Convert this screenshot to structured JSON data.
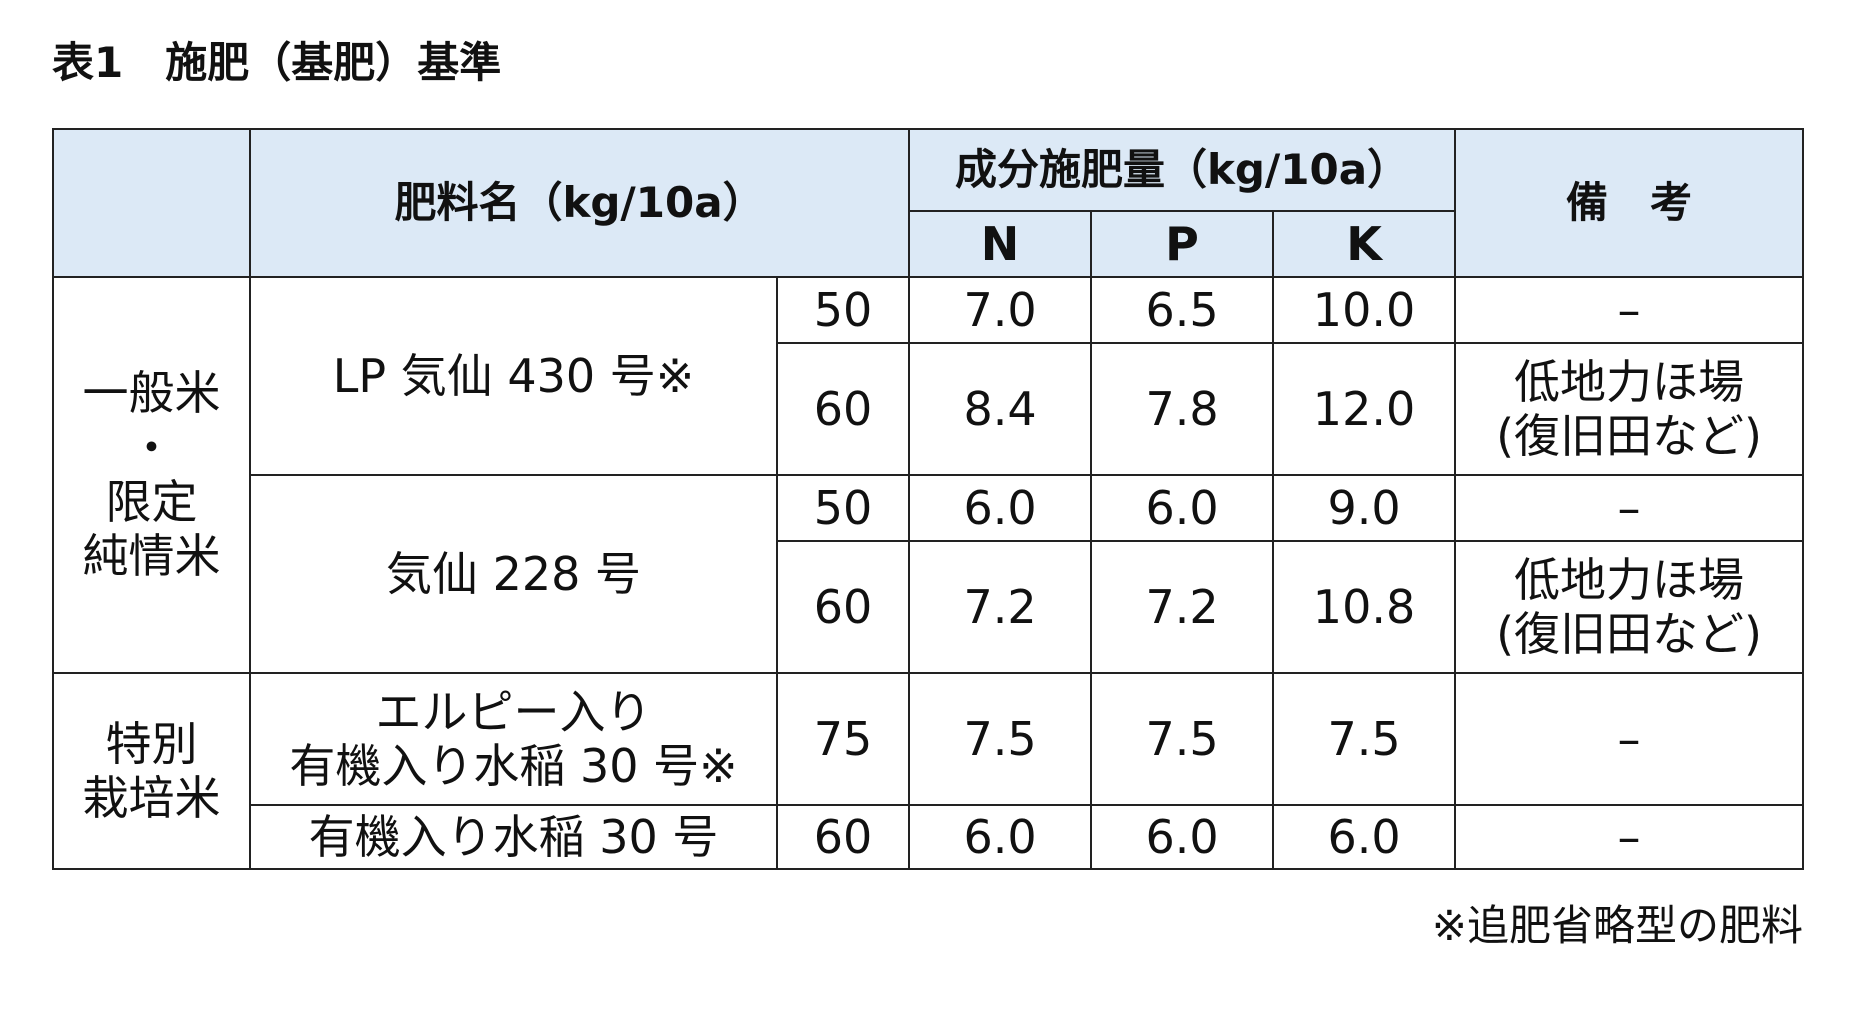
{
  "title": "表1　施肥（基肥）基準",
  "header": {
    "fertilizer_name": "肥料名（kg/10a）",
    "component": "成分施肥量（kg/10a）",
    "n": "N",
    "p": "P",
    "k": "K",
    "remarks": "備　考"
  },
  "groups": {
    "general": [
      "一般米",
      "・",
      "限定",
      "純情米"
    ],
    "special": [
      "特別",
      "栽培米"
    ]
  },
  "fertilizers": {
    "lp": "LP 気仙 430 号※",
    "kesen": "気仙 228 号",
    "elpi": [
      "エルピー入り",
      "有機入り水稲 30 号※"
    ],
    "organic": "有機入り水稲 30 号"
  },
  "rows": [
    {
      "amount": "50",
      "n": "7.0",
      "p": "6.5",
      "k": "10.0",
      "remark": [
        "–"
      ]
    },
    {
      "amount": "60",
      "n": "8.4",
      "p": "7.8",
      "k": "12.0",
      "remark": [
        "低地力ほ場",
        "(復旧田など)"
      ]
    },
    {
      "amount": "50",
      "n": "6.0",
      "p": "6.0",
      "k": "9.0",
      "remark": [
        "–"
      ]
    },
    {
      "amount": "60",
      "n": "7.2",
      "p": "7.2",
      "k": "10.8",
      "remark": [
        "低地力ほ場",
        "(復旧田など)"
      ]
    },
    {
      "amount": "75",
      "n": "7.5",
      "p": "7.5",
      "k": "7.5",
      "remark": [
        "–"
      ]
    },
    {
      "amount": "60",
      "n": "6.0",
      "p": "6.0",
      "k": "6.0",
      "remark": [
        "–"
      ]
    }
  ],
  "footnote": "※追肥省略型の肥料"
}
